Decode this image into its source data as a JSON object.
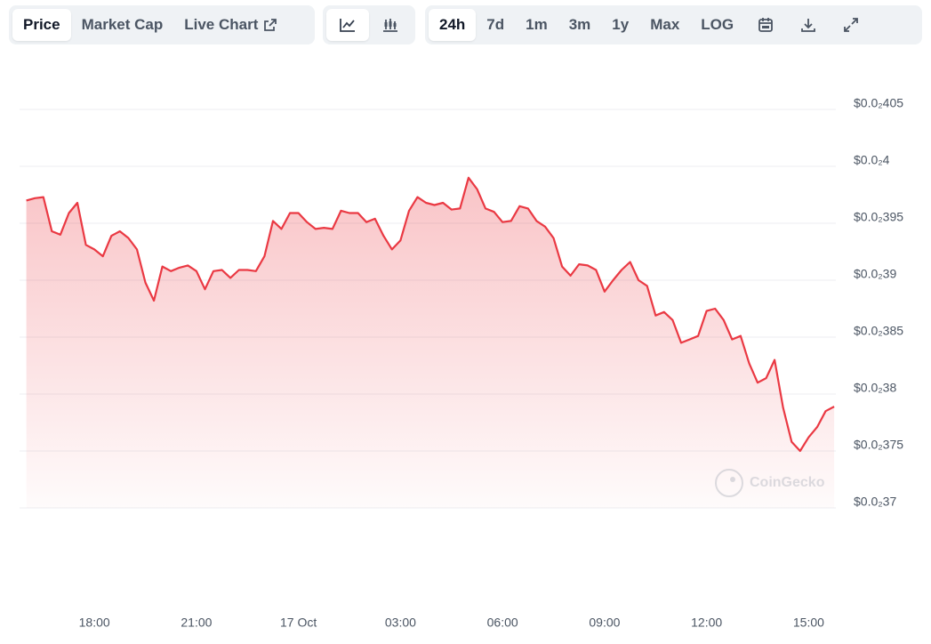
{
  "toolbar": {
    "views": [
      "Price",
      "Market Cap",
      "Live Chart"
    ],
    "ranges": [
      "24h",
      "7d",
      "1m",
      "3m",
      "1y",
      "Max",
      "LOG"
    ]
  },
  "watermark": "CoinGecko",
  "chart_data": {
    "type": "line",
    "color": "#ea3943",
    "fill": true,
    "grid": true,
    "x": [
      -8,
      -7.75,
      -7.5,
      -7.25,
      -7,
      -6.75,
      -6.5,
      -6.25,
      -6,
      -5.75,
      -5.5,
      -5.25,
      -5,
      -4.75,
      -4.5,
      -4.25,
      -4,
      -3.75,
      -3.5,
      -3.25,
      -3,
      -2.75,
      -2.5,
      -2.25,
      -2,
      -1.75,
      -1.5,
      -1.25,
      -1,
      -0.75,
      -0.5,
      -0.25,
      0,
      0.25,
      0.5,
      0.75,
      1,
      1.25,
      1.5,
      1.75,
      2,
      2.25,
      2.5,
      2.75,
      3,
      3.25,
      3.5,
      3.75,
      4,
      4.25,
      4.5,
      4.75,
      5,
      5.25,
      5.5,
      5.75,
      6,
      6.25,
      6.5,
      6.75,
      7,
      7.25,
      7.5,
      7.75,
      8,
      8.25,
      8.5,
      8.75,
      9,
      9.25,
      9.5,
      9.75,
      10,
      10.25,
      10.5,
      10.75,
      11,
      11.25,
      11.5,
      11.75,
      12,
      12.25,
      12.5,
      12.75,
      13,
      13.25,
      13.5,
      13.75,
      14,
      14.25,
      14.5,
      14.75,
      15,
      15.25,
      15.5,
      15.75
    ],
    "values": [
      0.00397,
      0.003972,
      0.003973,
      0.003943,
      0.00394,
      0.003959,
      0.003968,
      0.003931,
      0.003927,
      0.003921,
      0.003939,
      0.003943,
      0.003937,
      0.003927,
      0.003898,
      0.003882,
      0.003912,
      0.003908,
      0.003911,
      0.003913,
      0.003908,
      0.003892,
      0.003908,
      0.003909,
      0.003902,
      0.003909,
      0.003909,
      0.003908,
      0.003921,
      0.003952,
      0.003945,
      0.003959,
      0.003959,
      0.003951,
      0.003945,
      0.003946,
      0.003945,
      0.003961,
      0.003959,
      0.003959,
      0.003951,
      0.003954,
      0.003939,
      0.003927,
      0.003935,
      0.003961,
      0.003973,
      0.003968,
      0.003966,
      0.003968,
      0.003962,
      0.003963,
      0.00399,
      0.00398,
      0.003963,
      0.00396,
      0.003951,
      0.003952,
      0.003965,
      0.003963,
      0.003952,
      0.003947,
      0.003937,
      0.003912,
      0.003904,
      0.003914,
      0.003913,
      0.003909,
      0.00389,
      0.0039,
      0.003909,
      0.003916,
      0.0039,
      0.003895,
      0.003869,
      0.003872,
      0.003865,
      0.003845,
      0.003848,
      0.003851,
      0.003873,
      0.003875,
      0.003865,
      0.003848,
      0.003851,
      0.003827,
      0.00381,
      0.003814,
      0.00383,
      0.003788,
      0.003758,
      0.00375,
      0.003762,
      0.003771,
      0.003785,
      0.003789
    ],
    "xlim": [
      -8.2,
      15.8
    ],
    "xticks": [
      {
        "value": -6,
        "label": "18:00"
      },
      {
        "value": -3,
        "label": "21:00"
      },
      {
        "value": 0,
        "label": "17 Oct"
      },
      {
        "value": 3,
        "label": "03:00"
      },
      {
        "value": 6,
        "label": "06:00"
      },
      {
        "value": 9,
        "label": "09:00"
      },
      {
        "value": 12,
        "label": "12:00"
      },
      {
        "value": 15,
        "label": "15:00"
      }
    ],
    "ylim": [
      0.0037,
      0.00407
    ],
    "yticks": [
      {
        "value": 0.0037,
        "label": "$0.0₂37"
      },
      {
        "value": 0.00375,
        "label": "$0.0₂375"
      },
      {
        "value": 0.0038,
        "label": "$0.0₂38"
      },
      {
        "value": 0.00385,
        "label": "$0.0₂385"
      },
      {
        "value": 0.0039,
        "label": "$0.0₂39"
      },
      {
        "value": 0.00395,
        "label": "$0.0₂395"
      },
      {
        "value": 0.004,
        "label": "$0.0₂4"
      },
      {
        "value": 0.00405,
        "label": "$0.0₂405"
      }
    ]
  }
}
